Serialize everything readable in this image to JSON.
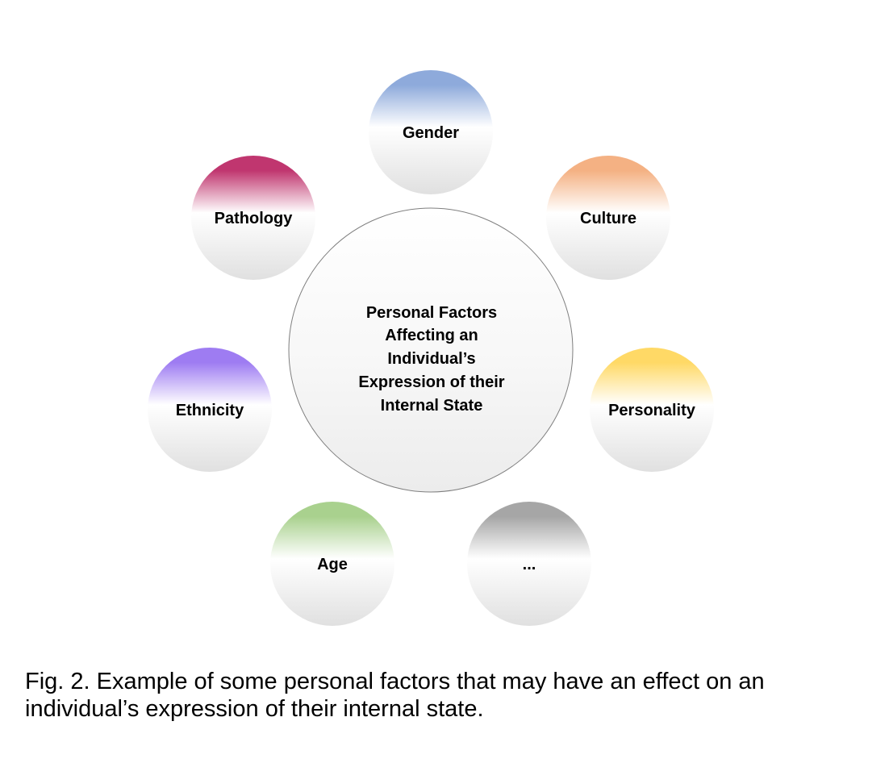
{
  "diagram": {
    "center": {
      "lines": [
        "Personal Factors",
        "Affecting an",
        "Individual’s",
        "Expression of their",
        "Internal State"
      ]
    },
    "factors": [
      {
        "label": "Gender",
        "color": "#8eaadb"
      },
      {
        "label": "Culture",
        "color": "#f4b183"
      },
      {
        "label": "Personality",
        "color": "#ffd966"
      },
      {
        "label": "...",
        "color": "#a6a6a6"
      },
      {
        "label": "Age",
        "color": "#a9d18e"
      },
      {
        "label": "Ethnicity",
        "color": "#9e7cf2"
      },
      {
        "label": "Pathology",
        "color": "#c0366f"
      }
    ],
    "circle_bottom_color": "#e0e0e0"
  },
  "caption": "Fig. 2. Example of some personal factors that may have an effect on an individual’s expression of their internal state."
}
